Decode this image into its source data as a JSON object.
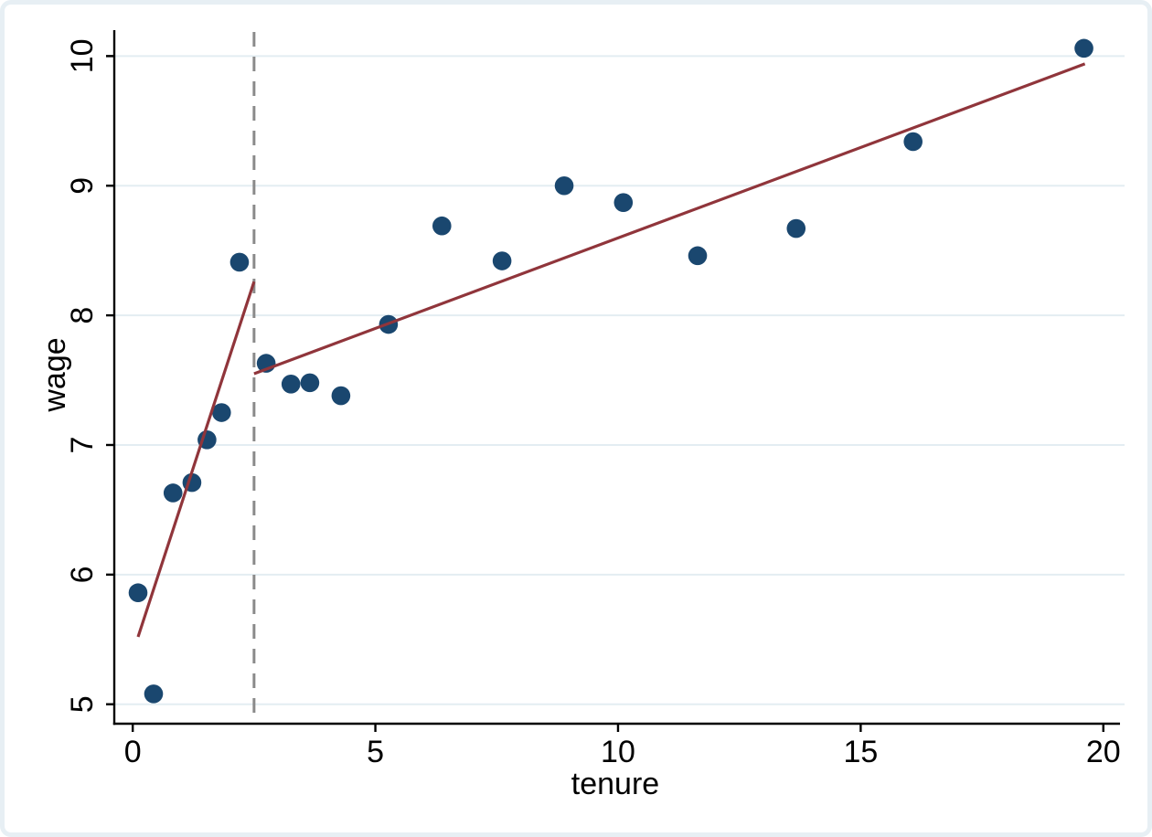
{
  "chart_data": {
    "type": "scatter",
    "title": "",
    "xlabel": "tenure",
    "ylabel": "wage",
    "x_ticks": [
      0,
      5,
      10,
      15,
      20
    ],
    "y_ticks": [
      5,
      6,
      7,
      8,
      9,
      10
    ],
    "xlim": [
      -0.38,
      20.4
    ],
    "ylim": [
      4.85,
      10.2
    ],
    "grid": "horizontal-only",
    "legend": "none",
    "points": [
      [
        0.11,
        5.86
      ],
      [
        0.43,
        5.08
      ],
      [
        0.83,
        6.63
      ],
      [
        1.22,
        6.71
      ],
      [
        1.53,
        7.04
      ],
      [
        1.83,
        7.25
      ],
      [
        2.2,
        8.41
      ],
      [
        2.75,
        7.63
      ],
      [
        3.26,
        7.47
      ],
      [
        3.65,
        7.48
      ],
      [
        4.29,
        7.38
      ],
      [
        5.27,
        7.93
      ],
      [
        6.37,
        8.69
      ],
      [
        7.61,
        8.42
      ],
      [
        8.89,
        9.0
      ],
      [
        10.11,
        8.87
      ],
      [
        11.64,
        8.46
      ],
      [
        13.67,
        8.67
      ],
      [
        16.08,
        9.34
      ],
      [
        19.6,
        10.06
      ]
    ],
    "fit_lines": [
      {
        "name": "fit-below-cutoff",
        "x1": 0.11,
        "y1": 5.52,
        "x2": 2.5,
        "y2": 8.26
      },
      {
        "name": "fit-above-cutoff",
        "x1": 2.5,
        "y1": 7.55,
        "x2": 19.62,
        "y2": 9.94
      }
    ],
    "vline": {
      "x": 2.5,
      "style": "dashed"
    },
    "colors": {
      "marker": "#1a476f",
      "fit": "#90353b",
      "vline": "#8a8a8a",
      "grid": "#e3edf2",
      "axis": "#000000",
      "frame": "#e7eff4",
      "plot_bg": "#ffffff"
    }
  }
}
